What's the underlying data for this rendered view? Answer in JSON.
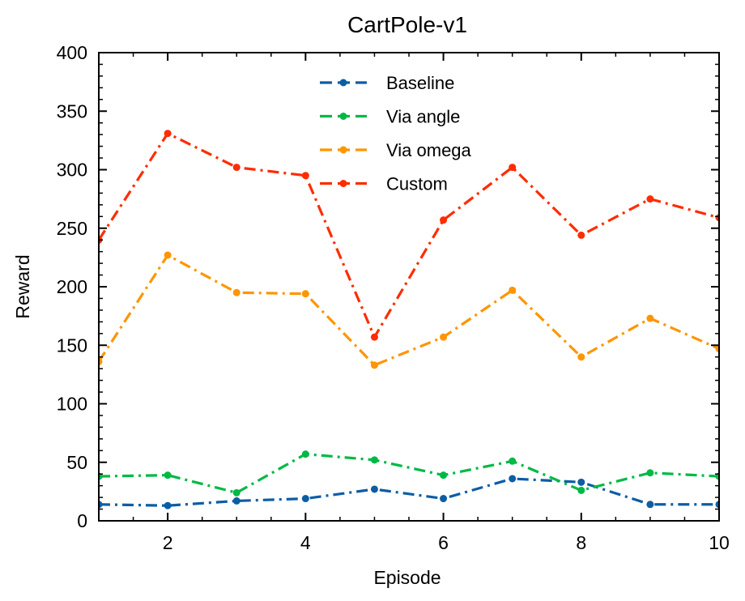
{
  "chart_data": {
    "type": "line",
    "title": "CartPole-v1",
    "xlabel": "Episode",
    "ylabel": "Reward",
    "xlim": [
      1,
      10
    ],
    "ylim": [
      0,
      400
    ],
    "x": [
      1,
      2,
      3,
      4,
      5,
      6,
      7,
      8,
      9,
      10
    ],
    "xticks": [
      "2",
      "4",
      "6",
      "8",
      "10"
    ],
    "yticks": [
      "0",
      "50",
      "100",
      "150",
      "200",
      "250",
      "300",
      "350",
      "400"
    ],
    "grid": false,
    "legend_position": "top-center",
    "series": [
      {
        "name": "Baseline",
        "color": "#0C5DA5",
        "values": [
          14,
          13,
          17,
          19,
          27,
          19,
          36,
          33,
          14,
          14
        ]
      },
      {
        "name": "Via angle",
        "color": "#00B945",
        "values": [
          38,
          39,
          24,
          57,
          52,
          39,
          51,
          26,
          41,
          38
        ]
      },
      {
        "name": "Via omega",
        "color": "#FF9500",
        "values": [
          136,
          227,
          195,
          194,
          133,
          157,
          197,
          140,
          173,
          147
        ]
      },
      {
        "name": "Custom",
        "color": "#FF2C00",
        "values": [
          240,
          331,
          302,
          295,
          157,
          257,
          302,
          244,
          275,
          259
        ]
      }
    ]
  }
}
